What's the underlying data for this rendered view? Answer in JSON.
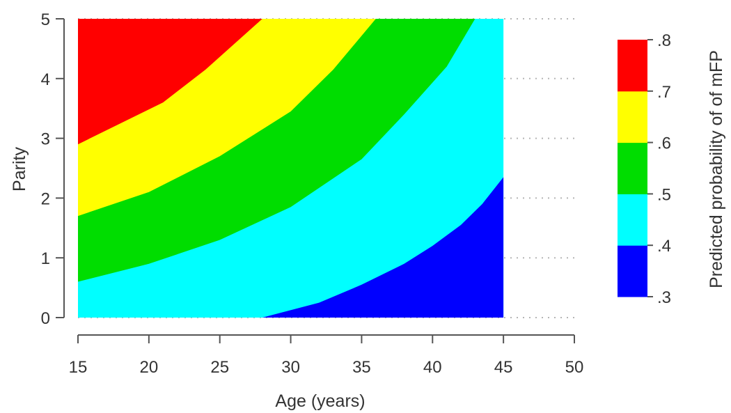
{
  "chart_data": {
    "type": "heatmap",
    "subtype": "contour",
    "xlabel": "Age (years)",
    "ylabel": "Parity",
    "colorbar_label": "Predicted probability of of mFP",
    "xlim": [
      15,
      50
    ],
    "ylim": [
      0,
      5
    ],
    "xticks": [
      "15",
      "20",
      "25",
      "30",
      "35",
      "40",
      "45",
      "50"
    ],
    "yticks": [
      "0",
      "1",
      "2",
      "3",
      "4",
      "5"
    ],
    "data_x_range": [
      15,
      45
    ],
    "grid": "dotted horizontal",
    "colorbar_ticks": [
      ".3",
      ".4",
      ".5",
      ".6",
      ".7",
      ".8"
    ],
    "levels": [
      {
        "range": [
          0.3,
          0.4
        ],
        "color": "#0000ff"
      },
      {
        "range": [
          0.4,
          0.5
        ],
        "color": "#00ffff"
      },
      {
        "range": [
          0.5,
          0.6
        ],
        "color": "#00dd00"
      },
      {
        "range": [
          0.6,
          0.7
        ],
        "color": "#ffff00"
      },
      {
        "range": [
          0.7,
          0.8
        ],
        "color": "#ff0000"
      }
    ],
    "contour_lines": [
      {
        "level": 0.4,
        "points": [
          [
            28,
            0
          ],
          [
            32,
            0.25
          ],
          [
            35,
            0.55
          ],
          [
            38,
            0.9
          ],
          [
            40,
            1.2
          ],
          [
            42,
            1.55
          ],
          [
            43.5,
            1.9
          ],
          [
            45,
            2.35
          ]
        ]
      },
      {
        "level": 0.5,
        "points": [
          [
            15,
            0.6
          ],
          [
            20,
            0.9
          ],
          [
            25,
            1.3
          ],
          [
            30,
            1.85
          ],
          [
            35,
            2.65
          ],
          [
            38,
            3.4
          ],
          [
            41,
            4.2
          ],
          [
            43,
            5
          ]
        ]
      },
      {
        "level": 0.6,
        "points": [
          [
            15,
            1.7
          ],
          [
            20,
            2.1
          ],
          [
            25,
            2.7
          ],
          [
            30,
            3.45
          ],
          [
            33,
            4.15
          ],
          [
            36,
            5
          ]
        ]
      },
      {
        "level": 0.7,
        "points": [
          [
            15,
            2.9
          ],
          [
            18,
            3.25
          ],
          [
            21,
            3.6
          ],
          [
            24,
            4.15
          ],
          [
            28,
            5
          ]
        ]
      }
    ]
  }
}
